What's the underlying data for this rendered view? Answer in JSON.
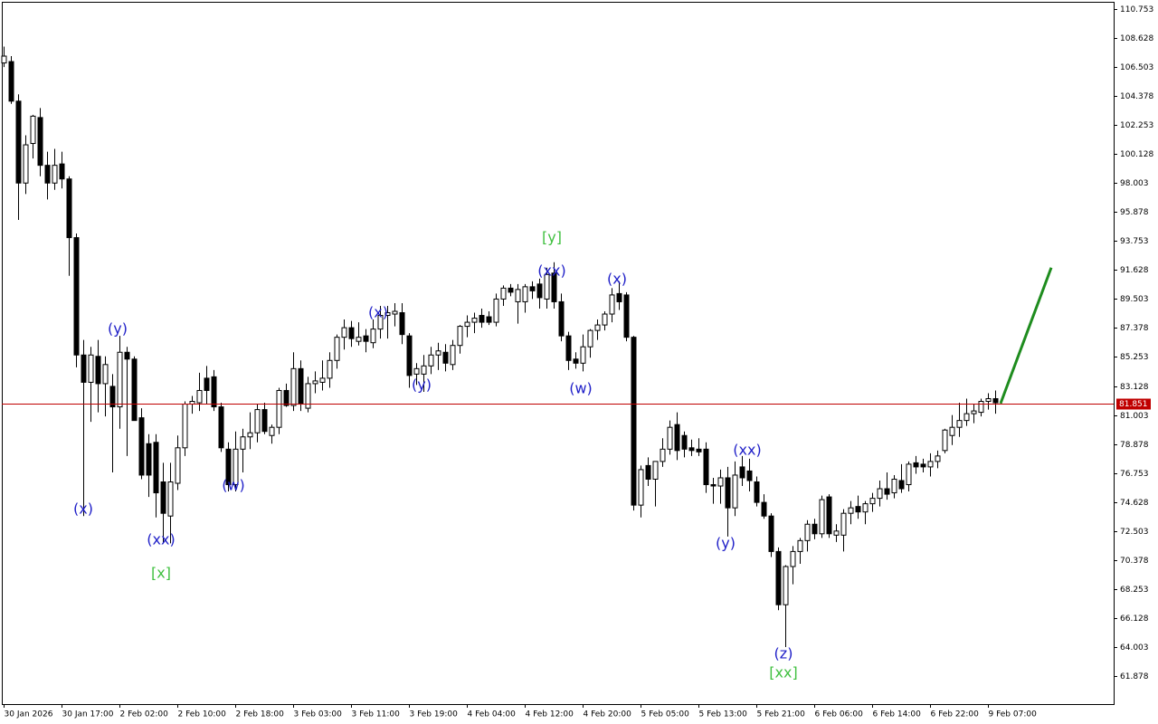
{
  "chart_data": {
    "type": "candlestick",
    "categories": [
      "30 Jan 2026",
      null,
      null,
      null,
      null,
      null,
      null,
      null,
      "30 Jan 17:00",
      null,
      null,
      null,
      null,
      null,
      null,
      null,
      "2 Feb 02:00",
      null,
      null,
      null,
      null,
      null,
      null,
      null,
      "2 Feb 10:00",
      null,
      null,
      null,
      null,
      null,
      null,
      null,
      "2 Feb 18:00",
      null,
      null,
      null,
      null,
      null,
      null,
      null,
      "3 Feb 03:00",
      null,
      null,
      null,
      null,
      null,
      null,
      null,
      "3 Feb 11:00",
      null,
      null,
      null,
      null,
      null,
      null,
      null,
      "3 Feb 19:00",
      null,
      null,
      null,
      null,
      null,
      null,
      null,
      "4 Feb 04:00",
      null,
      null,
      null,
      null,
      null,
      null,
      null,
      "4 Feb 12:00",
      null,
      null,
      null,
      null,
      null,
      null,
      null,
      "4 Feb 20:00",
      null,
      null,
      null,
      null,
      null,
      null,
      null,
      "5 Feb 05:00",
      null,
      null,
      null,
      null,
      null,
      null,
      null,
      "5 Feb 13:00",
      null,
      null,
      null,
      null,
      null,
      null,
      null,
      "5 Feb 21:00",
      null,
      null,
      null,
      null,
      null,
      null,
      null,
      "6 Feb 06:00",
      null,
      null,
      null,
      null,
      null,
      null,
      null,
      "6 Feb 14:00",
      null,
      null,
      null,
      null,
      null,
      null,
      null,
      "6 Feb 22:00",
      null,
      null,
      null,
      null,
      null,
      null,
      null,
      "9 Feb 07:00",
      null
    ],
    "candles": [
      [
        106.8,
        108.0,
        106.5,
        107.3
      ],
      [
        106.9,
        107.3,
        103.8,
        104.0
      ],
      [
        104.0,
        104.5,
        95.3,
        98.0
      ],
      [
        98.0,
        101.5,
        97.2,
        100.8
      ],
      [
        100.9,
        103.0,
        99.8,
        102.9
      ],
      [
        102.8,
        103.5,
        98.5,
        99.3
      ],
      [
        99.3,
        100.3,
        96.8,
        98.0
      ],
      [
        98.0,
        100.5,
        97.5,
        99.3
      ],
      [
        99.4,
        100.3,
        97.6,
        98.3
      ],
      [
        98.3,
        98.5,
        91.2,
        94.0
      ],
      [
        94.0,
        94.3,
        84.5,
        85.4
      ],
      [
        85.4,
        86.5,
        73.6,
        83.4
      ],
      [
        83.4,
        86.0,
        80.5,
        85.4
      ],
      [
        85.3,
        86.5,
        81.2,
        83.3
      ],
      [
        83.3,
        85.3,
        80.9,
        84.7
      ],
      [
        83.1,
        84.0,
        76.8,
        81.6
      ],
      [
        81.6,
        86.8,
        80.0,
        85.6
      ],
      [
        85.6,
        86.0,
        78.0,
        85.1
      ],
      [
        85.1,
        85.3,
        80.6,
        80.6
      ],
      [
        80.8,
        81.5,
        76.3,
        76.6
      ],
      [
        78.9,
        79.6,
        75.0,
        76.6
      ],
      [
        79.0,
        79.6,
        73.5,
        75.3
      ],
      [
        76.1,
        77.5,
        71.6,
        73.8
      ],
      [
        73.6,
        77.5,
        71.6,
        76.1
      ],
      [
        76.0,
        79.5,
        75.5,
        78.6
      ],
      [
        78.6,
        82.0,
        78.0,
        81.8
      ],
      [
        81.8,
        82.4,
        81.1,
        82.0
      ],
      [
        81.9,
        84.1,
        81.3,
        82.8
      ],
      [
        83.7,
        84.6,
        81.8,
        82.8
      ],
      [
        83.8,
        84.3,
        81.3,
        81.6
      ],
      [
        81.6,
        81.9,
        78.3,
        78.6
      ],
      [
        78.5,
        79.0,
        75.4,
        75.9
      ],
      [
        75.9,
        79.8,
        75.4,
        78.5
      ],
      [
        78.5,
        80.0,
        76.8,
        79.4
      ],
      [
        79.4,
        81.2,
        78.5,
        79.7
      ],
      [
        79.7,
        81.8,
        79.0,
        81.4
      ],
      [
        81.4,
        81.9,
        79.6,
        79.8
      ],
      [
        79.5,
        80.3,
        78.9,
        80.1
      ],
      [
        80.1,
        83.0,
        79.6,
        82.8
      ],
      [
        82.8,
        83.3,
        81.6,
        81.7
      ],
      [
        81.7,
        85.6,
        81.3,
        84.4
      ],
      [
        84.4,
        85.0,
        81.3,
        81.8
      ],
      [
        81.5,
        83.8,
        81.2,
        83.3
      ],
      [
        83.3,
        84.2,
        82.6,
        83.5
      ],
      [
        83.4,
        85.0,
        82.8,
        83.7
      ],
      [
        83.7,
        85.6,
        83.0,
        85.0
      ],
      [
        85.0,
        86.9,
        84.4,
        86.7
      ],
      [
        86.7,
        88.0,
        85.8,
        87.4
      ],
      [
        87.4,
        87.9,
        86.0,
        86.6
      ],
      [
        86.4,
        87.8,
        86.1,
        86.7
      ],
      [
        86.8,
        87.3,
        85.6,
        86.4
      ],
      [
        86.3,
        88.0,
        85.9,
        87.3
      ],
      [
        87.3,
        89.0,
        86.6,
        88.3
      ],
      [
        88.3,
        89.0,
        86.6,
        88.5
      ],
      [
        88.4,
        89.2,
        87.5,
        88.6
      ],
      [
        88.5,
        89.2,
        86.2,
        86.9
      ],
      [
        86.8,
        87.0,
        83.0,
        83.9
      ],
      [
        84.0,
        84.8,
        83.2,
        84.4
      ],
      [
        84.0,
        85.4,
        82.7,
        84.6
      ],
      [
        84.6,
        86.0,
        84.0,
        85.4
      ],
      [
        85.4,
        86.3,
        84.3,
        85.7
      ],
      [
        85.6,
        86.2,
        84.2,
        84.8
      ],
      [
        84.7,
        86.5,
        84.3,
        86.1
      ],
      [
        86.1,
        87.6,
        85.5,
        87.5
      ],
      [
        87.5,
        88.3,
        86.7,
        87.8
      ],
      [
        87.8,
        88.5,
        87.0,
        88.1
      ],
      [
        88.3,
        88.8,
        87.4,
        87.8
      ],
      [
        88.2,
        88.6,
        87.6,
        87.8
      ],
      [
        87.8,
        89.9,
        87.5,
        89.5
      ],
      [
        89.5,
        90.5,
        89.0,
        90.3
      ],
      [
        90.3,
        90.6,
        89.7,
        90.0
      ],
      [
        89.3,
        90.6,
        87.7,
        90.2
      ],
      [
        89.3,
        90.6,
        88.5,
        90.4
      ],
      [
        90.4,
        90.8,
        89.5,
        90.1
      ],
      [
        90.6,
        91.0,
        88.8,
        89.6
      ],
      [
        89.5,
        91.8,
        88.8,
        91.3
      ],
      [
        91.4,
        92.2,
        88.8,
        89.3
      ],
      [
        89.3,
        89.9,
        86.4,
        86.8
      ],
      [
        86.8,
        87.1,
        84.3,
        85.0
      ],
      [
        85.1,
        85.6,
        84.4,
        84.8
      ],
      [
        84.8,
        86.9,
        84.2,
        86.0
      ],
      [
        86.0,
        87.3,
        85.2,
        87.2
      ],
      [
        87.2,
        88.0,
        86.5,
        87.6
      ],
      [
        87.6,
        88.6,
        87.2,
        88.4
      ],
      [
        88.4,
        90.3,
        87.8,
        89.8
      ],
      [
        89.9,
        90.8,
        88.7,
        89.3
      ],
      [
        89.8,
        90.0,
        86.4,
        86.7
      ],
      [
        86.7,
        86.8,
        74.0,
        74.4
      ],
      [
        74.4,
        77.3,
        73.5,
        77.0
      ],
      [
        77.3,
        77.9,
        75.8,
        76.3
      ],
      [
        76.3,
        77.6,
        74.3,
        77.6
      ],
      [
        77.6,
        79.3,
        77.2,
        78.5
      ],
      [
        78.5,
        80.6,
        78.1,
        80.1
      ],
      [
        80.3,
        81.2,
        77.7,
        78.4
      ],
      [
        79.5,
        79.8,
        77.9,
        78.5
      ],
      [
        78.6,
        79.2,
        78.0,
        78.4
      ],
      [
        78.5,
        79.3,
        78.0,
        78.3
      ],
      [
        78.5,
        79.0,
        75.3,
        75.9
      ],
      [
        75.9,
        76.4,
        74.5,
        75.8
      ],
      [
        75.8,
        77.0,
        74.5,
        76.4
      ],
      [
        76.4,
        77.2,
        72.1,
        74.2
      ],
      [
        74.2,
        77.6,
        73.6,
        76.6
      ],
      [
        77.2,
        78.0,
        75.8,
        76.4
      ],
      [
        76.9,
        77.8,
        75.4,
        76.2
      ],
      [
        76.1,
        76.5,
        74.3,
        74.6
      ],
      [
        74.6,
        75.2,
        73.4,
        73.6
      ],
      [
        73.6,
        73.8,
        70.6,
        71.0
      ],
      [
        71.0,
        71.3,
        66.7,
        67.1
      ],
      [
        67.1,
        70.0,
        64.0,
        69.9
      ],
      [
        69.9,
        71.4,
        68.6,
        71.0
      ],
      [
        71.0,
        72.0,
        70.1,
        71.8
      ],
      [
        71.8,
        73.3,
        71.0,
        73.0
      ],
      [
        73.0,
        73.4,
        71.9,
        72.3
      ],
      [
        72.3,
        75.1,
        72.0,
        74.8
      ],
      [
        75.0,
        75.2,
        72.0,
        72.3
      ],
      [
        72.2,
        73.0,
        71.7,
        72.5
      ],
      [
        72.2,
        74.1,
        71.0,
        73.8
      ],
      [
        73.8,
        74.7,
        73.0,
        74.2
      ],
      [
        74.3,
        75.1,
        73.4,
        73.9
      ],
      [
        73.9,
        74.7,
        73.0,
        74.5
      ],
      [
        74.5,
        75.3,
        73.9,
        74.9
      ],
      [
        74.9,
        76.2,
        74.3,
        75.6
      ],
      [
        75.6,
        76.8,
        74.8,
        75.2
      ],
      [
        75.3,
        76.6,
        74.9,
        76.3
      ],
      [
        76.2,
        77.4,
        75.3,
        75.6
      ],
      [
        75.9,
        77.6,
        75.4,
        77.4
      ],
      [
        77.5,
        78.0,
        76.7,
        77.2
      ],
      [
        77.4,
        77.8,
        76.8,
        77.2
      ],
      [
        77.2,
        78.2,
        76.5,
        77.6
      ],
      [
        77.6,
        78.4,
        77.1,
        78.0
      ],
      [
        78.4,
        80.0,
        78.2,
        79.9
      ],
      [
        79.5,
        81.0,
        78.8,
        80.1
      ],
      [
        80.1,
        81.9,
        79.4,
        80.6
      ],
      [
        80.6,
        82.2,
        80.2,
        81.1
      ],
      [
        81.1,
        81.8,
        80.4,
        81.3
      ],
      [
        81.2,
        82.2,
        80.9,
        82.0
      ],
      [
        82.0,
        82.6,
        81.4,
        82.2
      ],
      [
        82.2,
        82.8,
        81.1,
        81.9
      ]
    ],
    "ylim": [
      59.82,
      111.28
    ],
    "yticks": [
      110.753,
      108.628,
      106.503,
      104.378,
      102.253,
      100.128,
      98.003,
      95.878,
      93.753,
      91.628,
      89.503,
      87.378,
      85.253,
      83.128,
      81.003,
      78.878,
      76.753,
      74.628,
      72.503,
      70.378,
      68.253,
      66.128,
      64.003,
      61.878
    ],
    "current_price": 81.851,
    "current_price_color": "#c00000",
    "forecast": {
      "values": [
        81.851,
        91.8
      ],
      "color": "#1e8c1e"
    },
    "annotations": [
      {
        "text": "(x)",
        "color": "#2020c8"
      },
      {
        "text": "(y)",
        "color": "#2020c8"
      },
      {
        "text": "(xx)",
        "color": "#2020c8"
      },
      {
        "text": "[x]",
        "color": "#40c040"
      },
      {
        "text": "(w)",
        "color": "#2020c8"
      },
      {
        "text": "(x)",
        "color": "#2020c8"
      },
      {
        "text": "(y)",
        "color": "#2020c8"
      },
      {
        "text": "(xx)",
        "color": "#2020c8"
      },
      {
        "text": "[y]",
        "color": "#40c040"
      },
      {
        "text": "(x)",
        "color": "#2020c8"
      },
      {
        "text": "(w)",
        "color": "#2020c8"
      },
      {
        "text": "(xx)",
        "color": "#2020c8"
      },
      {
        "text": "(y)",
        "color": "#2020c8"
      },
      {
        "text": "(z)",
        "color": "#2020c8"
      },
      {
        "text": "[xx]",
        "color": "#40c040"
      }
    ]
  }
}
